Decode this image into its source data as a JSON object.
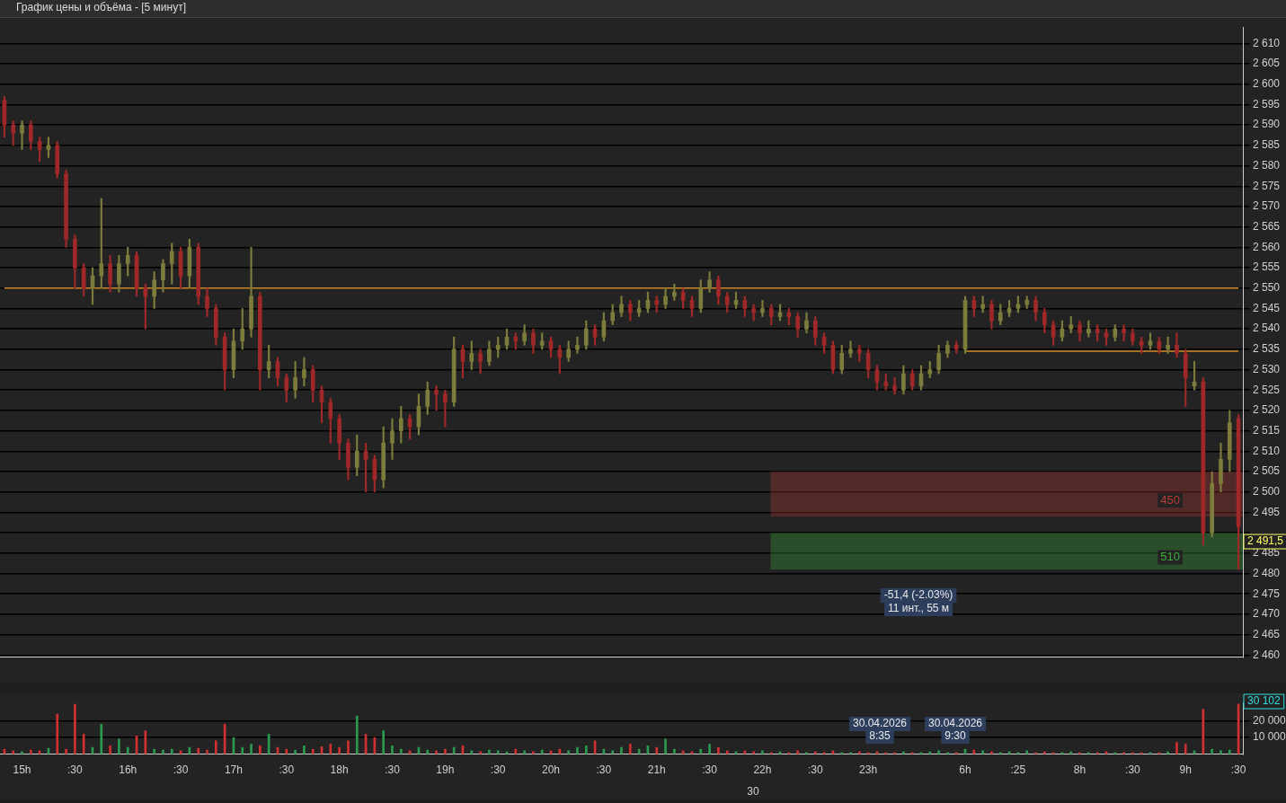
{
  "chart_data": [
    {
      "type": "candlestick",
      "title": "График цены и объёма - [5 минут]",
      "categories": [
        null,
        null,
        null,
        null,
        null,
        null,
        null,
        null,
        null,
        null,
        null,
        null,
        null,
        null,
        null,
        null,
        null,
        null,
        null,
        null,
        null,
        null,
        null,
        null,
        null,
        null,
        null,
        null,
        null,
        null,
        null,
        null,
        null,
        null,
        null,
        null,
        null,
        null,
        null,
        null,
        null,
        null,
        null,
        null,
        null,
        null,
        null,
        null,
        null,
        null,
        null,
        null,
        null,
        null,
        null,
        null,
        null,
        null,
        null,
        null,
        null,
        null,
        null,
        null,
        null,
        null,
        null,
        null,
        null,
        null,
        null,
        null,
        null,
        null,
        null,
        null,
        null,
        null,
        null,
        null,
        null,
        null,
        null,
        null,
        null,
        null,
        null,
        null,
        null,
        null,
        null,
        null,
        null,
        null,
        null,
        null,
        null,
        null,
        null,
        null,
        null,
        null,
        null,
        null,
        null,
        null,
        null,
        null,
        null,
        null,
        null,
        null,
        null,
        null,
        null,
        null,
        null,
        null,
        null,
        null,
        null,
        null,
        null,
        null,
        null,
        null,
        null,
        null,
        null,
        null,
        null,
        null,
        null,
        null,
        null,
        null,
        null,
        null,
        null,
        null,
        null
      ],
      "ohlc": [
        [
          2596,
          2597,
          2587,
          2590
        ],
        [
          2590,
          2591,
          2585,
          2588
        ],
        [
          2588,
          2591,
          2584,
          2590
        ],
        [
          2590,
          2591,
          2584,
          2586
        ],
        [
          2586,
          2587,
          2581,
          2584
        ],
        [
          2584,
          2587,
          2582,
          2585
        ],
        [
          2585,
          2586,
          2577,
          2578
        ],
        [
          2578,
          2579,
          2560,
          2562
        ],
        [
          2562,
          2563,
          2550,
          2555
        ],
        [
          2555,
          2556,
          2548,
          2550
        ],
        [
          2550,
          2555,
          2546,
          2553
        ],
        [
          2553,
          2572,
          2550,
          2556
        ],
        [
          2556,
          2558,
          2549,
          2551
        ],
        [
          2551,
          2558,
          2549,
          2556
        ],
        [
          2556,
          2560,
          2553,
          2558
        ],
        [
          2558,
          2559,
          2548,
          2550
        ],
        [
          2550,
          2551,
          2540,
          2548
        ],
        [
          2548,
          2554,
          2545,
          2552
        ],
        [
          2552,
          2557,
          2549,
          2556
        ],
        [
          2556,
          2561,
          2551,
          2559
        ],
        [
          2559,
          2560,
          2550,
          2553
        ],
        [
          2553,
          2562,
          2550,
          2560
        ],
        [
          2560,
          2561,
          2546,
          2548
        ],
        [
          2548,
          2550,
          2543,
          2545
        ],
        [
          2545,
          2546,
          2536,
          2538
        ],
        [
          2538,
          2539,
          2525,
          2530
        ],
        [
          2530,
          2540,
          2528,
          2537
        ],
        [
          2537,
          2545,
          2535,
          2540
        ],
        [
          2540,
          2560,
          2538,
          2548
        ],
        [
          2548,
          2549,
          2525,
          2530
        ],
        [
          2530,
          2536,
          2528,
          2532
        ],
        [
          2532,
          2533,
          2526,
          2528
        ],
        [
          2528,
          2529,
          2522,
          2525
        ],
        [
          2525,
          2532,
          2523,
          2528
        ],
        [
          2528,
          2533,
          2526,
          2530
        ],
        [
          2530,
          2531,
          2522,
          2525
        ],
        [
          2525,
          2526,
          2517,
          2522
        ],
        [
          2522,
          2523,
          2512,
          2518
        ],
        [
          2518,
          2519,
          2508,
          2512
        ],
        [
          2512,
          2513,
          2503,
          2506
        ],
        [
          2506,
          2514,
          2504,
          2510
        ],
        [
          2510,
          2512,
          2500,
          2508
        ],
        [
          2508,
          2509,
          2500,
          2503
        ],
        [
          2503,
          2516,
          2501,
          2512
        ],
        [
          2512,
          2518,
          2508,
          2515
        ],
        [
          2515,
          2521,
          2512,
          2518
        ],
        [
          2518,
          2519,
          2513,
          2516
        ],
        [
          2516,
          2524,
          2514,
          2521
        ],
        [
          2521,
          2527,
          2519,
          2525
        ],
        [
          2525,
          2526,
          2520,
          2524
        ],
        [
          2524,
          2525,
          2516,
          2522
        ],
        [
          2522,
          2538,
          2521,
          2535
        ],
        [
          2535,
          2536,
          2528,
          2532
        ],
        [
          2532,
          2537,
          2530,
          2534
        ],
        [
          2534,
          2535,
          2529,
          2532
        ],
        [
          2532,
          2537,
          2531,
          2535
        ],
        [
          2535,
          2538,
          2533,
          2536
        ],
        [
          2536,
          2540,
          2535,
          2538
        ],
        [
          2538,
          2539,
          2535,
          2537
        ],
        [
          2537,
          2541,
          2536,
          2539
        ],
        [
          2539,
          2540,
          2534,
          2536
        ],
        [
          2536,
          2539,
          2535,
          2537
        ],
        [
          2537,
          2538,
          2533,
          2535
        ],
        [
          2535,
          2536,
          2529,
          2533
        ],
        [
          2533,
          2537,
          2532,
          2535
        ],
        [
          2535,
          2538,
          2534,
          2536
        ],
        [
          2536,
          2542,
          2535,
          2540
        ],
        [
          2540,
          2541,
          2536,
          2538
        ],
        [
          2538,
          2544,
          2537,
          2542
        ],
        [
          2542,
          2546,
          2541,
          2544
        ],
        [
          2544,
          2548,
          2543,
          2546
        ],
        [
          2546,
          2547,
          2542,
          2544
        ],
        [
          2544,
          2547,
          2543,
          2545
        ],
        [
          2545,
          2549,
          2544,
          2547
        ],
        [
          2547,
          2548,
          2544,
          2546
        ],
        [
          2546,
          2550,
          2545,
          2548
        ],
        [
          2548,
          2551,
          2547,
          2549
        ],
        [
          2549,
          2550,
          2545,
          2547
        ],
        [
          2547,
          2548,
          2543,
          2545
        ],
        [
          2545,
          2552,
          2544,
          2550
        ],
        [
          2550,
          2554,
          2549,
          2552
        ],
        [
          2552,
          2553,
          2546,
          2548
        ],
        [
          2548,
          2549,
          2544,
          2546
        ],
        [
          2546,
          2549,
          2545,
          2547
        ],
        [
          2547,
          2548,
          2543,
          2545
        ],
        [
          2545,
          2546,
          2542,
          2544
        ],
        [
          2544,
          2547,
          2543,
          2545
        ],
        [
          2545,
          2546,
          2541,
          2543
        ],
        [
          2543,
          2546,
          2542,
          2544
        ],
        [
          2544,
          2545,
          2541,
          2543
        ],
        [
          2543,
          2544,
          2538,
          2540
        ],
        [
          2540,
          2544,
          2539,
          2542
        ],
        [
          2542,
          2543,
          2536,
          2538
        ],
        [
          2538,
          2539,
          2534,
          2536
        ],
        [
          2536,
          2537,
          2529,
          2530
        ],
        [
          2530,
          2536,
          2529,
          2534
        ],
        [
          2534,
          2537,
          2533,
          2535
        ],
        [
          2535,
          2536,
          2532,
          2534
        ],
        [
          2534,
          2535,
          2528,
          2530
        ],
        [
          2530,
          2531,
          2525,
          2527
        ],
        [
          2527,
          2529,
          2525,
          2526
        ],
        [
          2526,
          2528,
          2524,
          2525
        ],
        [
          2525,
          2531,
          2524,
          2529
        ],
        [
          2529,
          2530,
          2525,
          2526
        ],
        [
          2526,
          2531,
          2525,
          2529
        ],
        [
          2529,
          2532,
          2528,
          2530
        ],
        [
          2530,
          2536,
          2529,
          2534
        ],
        [
          2534,
          2537,
          2533,
          2536
        ],
        [
          2536,
          2537,
          2534,
          2535
        ],
        [
          2535,
          2548,
          2534,
          2547
        ],
        [
          2547,
          2548,
          2543,
          2545
        ],
        [
          2545,
          2548,
          2544,
          2546
        ],
        [
          2546,
          2547,
          2540,
          2542
        ],
        [
          2542,
          2546,
          2541,
          2544
        ],
        [
          2544,
          2547,
          2543,
          2545
        ],
        [
          2545,
          2548,
          2544,
          2546
        ],
        [
          2546,
          2548,
          2545,
          2547
        ],
        [
          2547,
          2548,
          2542,
          2544
        ],
        [
          2544,
          2545,
          2539,
          2541
        ],
        [
          2541,
          2542,
          2536,
          2538
        ],
        [
          2538,
          2542,
          2537,
          2540
        ],
        [
          2540,
          2543,
          2539,
          2541
        ],
        [
          2541,
          2542,
          2537,
          2539
        ],
        [
          2539,
          2542,
          2538,
          2540
        ],
        [
          2540,
          2541,
          2537,
          2539
        ],
        [
          2539,
          2540,
          2536,
          2538
        ],
        [
          2538,
          2541,
          2537,
          2540
        ],
        [
          2540,
          2541,
          2537,
          2539
        ],
        [
          2539,
          2540,
          2536,
          2537
        ],
        [
          2537,
          2538,
          2534,
          2536
        ],
        [
          2536,
          2539,
          2535,
          2537
        ],
        [
          2537,
          2538,
          2534,
          2535
        ],
        [
          2535,
          2538,
          2534,
          2536
        ],
        [
          2536,
          2539,
          2533,
          2534
        ],
        [
          2534,
          2535,
          2521,
          2528
        ],
        [
          2526,
          2532,
          2525,
          2527
        ],
        [
          2527,
          2528,
          2487,
          2490
        ],
        [
          2490,
          2505,
          2489,
          2502
        ],
        [
          2502,
          2512,
          2500,
          2508
        ],
        [
          2508,
          2520,
          2505,
          2517
        ],
        [
          2518,
          2519,
          2481,
          2491.5
        ]
      ],
      "colors": [
        "#a02828",
        "#a02828",
        "#7c7c3c",
        "#a02828",
        "#a02828",
        "#7c7c3c",
        "#a02828",
        "#a02828",
        "#a02828",
        "#a02828",
        "#7c7c3c",
        "#7c7c3c",
        "#a02828",
        "#7c7c3c",
        "#7c7c3c",
        "#a02828",
        "#a02828",
        "#7c7c3c",
        "#7c7c3c",
        "#7c7c3c",
        "#a02828",
        "#7c7c3c",
        "#a02828",
        "#a02828",
        "#a02828",
        "#a02828",
        "#7c7c3c",
        "#7c7c3c",
        "#7c7c3c",
        "#a02828",
        "#7c7c3c",
        "#a02828",
        "#a02828",
        "#7c7c3c",
        "#7c7c3c",
        "#a02828",
        "#a02828",
        "#a02828",
        "#a02828",
        "#a02828",
        "#7c7c3c",
        "#a02828",
        "#a02828",
        "#7c7c3c",
        "#7c7c3c",
        "#7c7c3c",
        "#a02828",
        "#7c7c3c",
        "#7c7c3c",
        "#a02828",
        "#a02828",
        "#7c7c3c",
        "#a02828",
        "#7c7c3c",
        "#a02828",
        "#7c7c3c",
        "#7c7c3c",
        "#7c7c3c",
        "#a02828",
        "#7c7c3c",
        "#a02828",
        "#7c7c3c",
        "#a02828",
        "#a02828",
        "#7c7c3c",
        "#7c7c3c",
        "#7c7c3c",
        "#a02828",
        "#7c7c3c",
        "#7c7c3c",
        "#7c7c3c",
        "#a02828",
        "#7c7c3c",
        "#7c7c3c",
        "#a02828",
        "#7c7c3c",
        "#7c7c3c",
        "#a02828",
        "#a02828",
        "#7c7c3c",
        "#7c7c3c",
        "#a02828",
        "#a02828",
        "#7c7c3c",
        "#a02828",
        "#a02828",
        "#7c7c3c",
        "#a02828",
        "#7c7c3c",
        "#a02828",
        "#a02828",
        "#7c7c3c",
        "#a02828",
        "#a02828",
        "#a02828",
        "#7c7c3c",
        "#7c7c3c",
        "#a02828",
        "#a02828",
        "#a02828",
        "#a02828",
        "#a02828",
        "#7c7c3c",
        "#a02828",
        "#7c7c3c",
        "#7c7c3c",
        "#7c7c3c",
        "#7c7c3c",
        "#a02828",
        "#7c7c3c",
        "#a02828",
        "#7c7c3c",
        "#a02828",
        "#7c7c3c",
        "#7c7c3c",
        "#7c7c3c",
        "#7c7c3c",
        "#a02828",
        "#a02828",
        "#a02828",
        "#7c7c3c",
        "#7c7c3c",
        "#a02828",
        "#7c7c3c",
        "#a02828",
        "#a02828",
        "#7c7c3c",
        "#a02828",
        "#a02828",
        "#a02828",
        "#7c7c3c",
        "#a02828",
        "#7c7c3c",
        "#a02828",
        "#a02828",
        "#7c7c3c",
        "#a02828",
        "#7c7c3c",
        "#7c7c3c",
        "#7c7c3c",
        "#a02828"
      ],
      "ylim": [
        2459.5,
        2614
      ],
      "yticks": [
        {
          "value": 2460,
          "label": "2 460"
        },
        {
          "value": 2465,
          "label": "2 465"
        },
        {
          "value": 2470,
          "label": "2 470"
        },
        {
          "value": 2475,
          "label": "2 475"
        },
        {
          "value": 2480,
          "label": "2 480"
        },
        {
          "value": 2485,
          "label": "2 485"
        },
        {
          "value": 2490,
          "label": null
        },
        {
          "value": 2495,
          "label": "2 495"
        },
        {
          "value": 2500,
          "label": "2 500"
        },
        {
          "value": 2505,
          "label": "2 505"
        },
        {
          "value": 2510,
          "label": "2 510"
        },
        {
          "value": 2515,
          "label": "2 515"
        },
        {
          "value": 2520,
          "label": "2 520"
        },
        {
          "value": 2525,
          "label": "2 525"
        },
        {
          "value": 2530,
          "label": "2 530"
        },
        {
          "value": 2535,
          "label": "2 535"
        },
        {
          "value": 2540,
          "label": "2 540"
        },
        {
          "value": 2545,
          "label": "2 545"
        },
        {
          "value": 2550,
          "label": "2 550"
        },
        {
          "value": 2555,
          "label": "2 555"
        },
        {
          "value": 2560,
          "label": "2 560"
        },
        {
          "value": 2565,
          "label": "2 565"
        },
        {
          "value": 2570,
          "label": "2 570"
        },
        {
          "value": 2575,
          "label": "2 575"
        },
        {
          "value": 2580,
          "label": "2 580"
        },
        {
          "value": 2585,
          "label": "2 585"
        },
        {
          "value": 2590,
          "label": "2 590"
        },
        {
          "value": 2595,
          "label": "2 595"
        },
        {
          "value": 2600,
          "label": "2 600"
        },
        {
          "value": 2605,
          "label": "2 605"
        },
        {
          "value": 2610,
          "label": "2 610"
        }
      ],
      "grid": "y",
      "series": [
        {
          "type": "line",
          "color": "#d08a2a",
          "values": [
            2550,
            2550,
            2550,
            2550,
            2550,
            2550,
            2550,
            2550,
            2550,
            2550,
            2550,
            2550,
            2550,
            2550,
            2550,
            2550,
            2550,
            2550,
            2550,
            2550,
            2550,
            2550,
            2550,
            2550,
            2550,
            2550,
            2550,
            2550,
            2550,
            2550,
            2550,
            2550,
            2550,
            2550,
            2550,
            2550,
            2550,
            2550,
            2550,
            2550,
            2550,
            2550,
            2550,
            2550,
            2550,
            2550,
            2550,
            2550,
            2550,
            2550,
            2550,
            2550,
            2550,
            2550,
            2550,
            2550,
            2550,
            2550,
            2550,
            2550,
            2550,
            2550,
            2550,
            2550,
            2550,
            2550,
            2550,
            2550,
            2550,
            2550,
            2550,
            2550,
            2550,
            2550,
            2550,
            2550,
            2550,
            2550,
            2550,
            2550,
            2550,
            2550,
            2550,
            2550,
            2550,
            2550,
            2550,
            2550,
            2550,
            2550,
            2550,
            2550,
            2550,
            2550,
            2550,
            2550,
            2550,
            2550,
            2550,
            2550,
            2550,
            2550,
            2550,
            2550,
            2550,
            2550,
            2550,
            2550,
            2550,
            2550,
            2550,
            2550,
            2550,
            2550,
            2550,
            2550,
            2550,
            2550,
            2550,
            2550,
            2550,
            2550,
            2550,
            2550,
            2550,
            2550,
            2550,
            2550,
            2550,
            2550,
            2550,
            2550,
            2550,
            2550,
            2550,
            2550,
            2550,
            2550,
            2550,
            2550,
            2550
          ]
        },
        {
          "type": "line",
          "color": "#d08a2a",
          "values": [
            null,
            null,
            null,
            null,
            null,
            null,
            null,
            null,
            null,
            null,
            null,
            null,
            null,
            null,
            null,
            null,
            null,
            null,
            null,
            null,
            null,
            null,
            null,
            null,
            null,
            null,
            null,
            null,
            null,
            null,
            null,
            null,
            null,
            null,
            null,
            null,
            null,
            null,
            null,
            null,
            null,
            null,
            null,
            null,
            null,
            null,
            null,
            null,
            null,
            null,
            null,
            null,
            null,
            null,
            null,
            null,
            null,
            null,
            null,
            null,
            null,
            null,
            null,
            null,
            null,
            null,
            null,
            null,
            null,
            null,
            null,
            null,
            null,
            null,
            null,
            null,
            null,
            null,
            null,
            null,
            null,
            null,
            null,
            null,
            null,
            null,
            null,
            null,
            null,
            null,
            null,
            null,
            null,
            null,
            null,
            null,
            null,
            null,
            null,
            null,
            null,
            null,
            null,
            null,
            null,
            null,
            null,
            null,
            null,
            2534.5,
            2534.5,
            2534.5,
            2534.5,
            2534.5,
            2534.5,
            2534.5,
            2534.5,
            2534.5,
            2534.5,
            2534.5,
            2534.5,
            2534.5,
            2534.5,
            2534.5,
            2534.5,
            2534.5,
            2534.5,
            2534.5,
            2534.5,
            2534.5,
            2534.5,
            2534.5,
            2534.5,
            2534.5,
            2534.5,
            2534.5,
            2534.5,
            2534.5,
            2534.5,
            2534.5,
            2534.5
          ]
        }
      ],
      "bands": [
        {
          "axis": "y",
          "from": 2494,
          "to": 2505,
          "label": "450",
          "color": "#c03a3a"
        },
        {
          "axis": "y",
          "from": 2481,
          "to": 2490,
          "label": "510",
          "color": "#3ab03a"
        }
      ],
      "annotations": [
        "-51,4 (-2.03%)",
        "11 инт., 55 м",
        "2 491,5"
      ]
    },
    {
      "type": "bar",
      "categories": [
        null,
        null,
        "15h",
        null,
        null,
        null,
        null,
        null,
        ":30",
        null,
        null,
        null,
        null,
        null,
        "16h",
        null,
        null,
        null,
        null,
        null,
        ":30",
        null,
        null,
        null,
        null,
        null,
        "17h",
        null,
        null,
        null,
        null,
        null,
        ":30",
        null,
        null,
        null,
        null,
        null,
        "18h",
        null,
        null,
        null,
        null,
        null,
        ":30",
        null,
        null,
        null,
        null,
        null,
        "19h",
        null,
        null,
        null,
        null,
        null,
        ":30",
        null,
        null,
        null,
        null,
        null,
        "20h",
        null,
        null,
        null,
        null,
        null,
        ":30",
        null,
        null,
        null,
        null,
        null,
        "21h",
        null,
        null,
        null,
        null,
        null,
        ":30",
        null,
        null,
        null,
        null,
        null,
        "22h",
        null,
        null,
        null,
        null,
        null,
        ":30",
        null,
        null,
        null,
        null,
        null,
        "23h",
        null,
        null,
        null,
        null,
        null,
        null,
        null,
        null,
        null,
        null,
        "6h",
        null,
        null,
        null,
        null,
        null,
        ":25",
        null,
        null,
        null,
        null,
        null,
        null,
        "8h",
        null,
        null,
        null,
        null,
        null,
        ":30",
        null,
        null,
        null,
        null,
        null,
        "9h",
        null,
        null,
        null,
        null,
        null,
        ":30"
      ],
      "values": [
        3000,
        2000,
        1500,
        2500,
        2000,
        3500,
        24000,
        3000,
        30000,
        12000,
        4000,
        18000,
        5000,
        9000,
        4000,
        11000,
        14000,
        3000,
        2500,
        3000,
        2000,
        4000,
        3500,
        2500,
        8000,
        18000,
        10000,
        4000,
        6000,
        5000,
        12000,
        4000,
        3000,
        2500,
        5000,
        3000,
        4500,
        6000,
        4000,
        8000,
        23000,
        12000,
        10000,
        14000,
        5000,
        3000,
        2000,
        4000,
        2500,
        2000,
        3000,
        4000,
        5000,
        2000,
        1500,
        2500,
        2000,
        1500,
        3000,
        2000,
        1500,
        2500,
        2000,
        3000,
        2000,
        4000,
        5000,
        8000,
        3000,
        2000,
        4000,
        6000,
        3000,
        5000,
        4000,
        9000,
        3000,
        2000,
        1500,
        3000,
        6000,
        4000,
        2000,
        1500,
        2000,
        1500,
        2000,
        1000,
        1500,
        1000,
        2000,
        1000,
        1500,
        1000,
        2000,
        1000,
        1000,
        1500,
        1000,
        1500,
        1000,
        1000,
        1500,
        1000,
        1000,
        1500,
        2000,
        1000,
        1000,
        3000,
        2500,
        2000,
        1500,
        1000,
        1500,
        1000,
        2000,
        1000,
        1500,
        1000,
        1000,
        1500,
        1000,
        1000,
        1000,
        1500,
        1000,
        1000,
        1000,
        1000,
        1000,
        1000,
        1500,
        7000,
        6000,
        2000,
        27000,
        3000,
        2000,
        2500,
        30102
      ],
      "colors": [
        "#d03030",
        "#d03030",
        "#2a9a50",
        "#d03030",
        "#d03030",
        "#2a9a50",
        "#d03030",
        "#d03030",
        "#d03030",
        "#d03030",
        "#2a9a50",
        "#2a9a50",
        "#d03030",
        "#2a9a50",
        "#2a9a50",
        "#d03030",
        "#d03030",
        "#2a9a50",
        "#2a9a50",
        "#2a9a50",
        "#d03030",
        "#2a9a50",
        "#d03030",
        "#d03030",
        "#d03030",
        "#d03030",
        "#2a9a50",
        "#2a9a50",
        "#2a9a50",
        "#d03030",
        "#2a9a50",
        "#d03030",
        "#d03030",
        "#2a9a50",
        "#2a9a50",
        "#d03030",
        "#d03030",
        "#d03030",
        "#d03030",
        "#d03030",
        "#2a9a50",
        "#d03030",
        "#d03030",
        "#2a9a50",
        "#2a9a50",
        "#2a9a50",
        "#d03030",
        "#2a9a50",
        "#2a9a50",
        "#d03030",
        "#d03030",
        "#2a9a50",
        "#d03030",
        "#2a9a50",
        "#d03030",
        "#2a9a50",
        "#2a9a50",
        "#2a9a50",
        "#d03030",
        "#2a9a50",
        "#d03030",
        "#2a9a50",
        "#d03030",
        "#d03030",
        "#2a9a50",
        "#2a9a50",
        "#2a9a50",
        "#d03030",
        "#2a9a50",
        "#2a9a50",
        "#2a9a50",
        "#d03030",
        "#2a9a50",
        "#2a9a50",
        "#d03030",
        "#2a9a50",
        "#2a9a50",
        "#d03030",
        "#d03030",
        "#2a9a50",
        "#2a9a50",
        "#d03030",
        "#d03030",
        "#2a9a50",
        "#d03030",
        "#d03030",
        "#2a9a50",
        "#d03030",
        "#2a9a50",
        "#d03030",
        "#d03030",
        "#2a9a50",
        "#d03030",
        "#d03030",
        "#d03030",
        "#2a9a50",
        "#2a9a50",
        "#d03030",
        "#d03030",
        "#d03030",
        "#d03030",
        "#d03030",
        "#2a9a50",
        "#d03030",
        "#2a9a50",
        "#2a9a50",
        "#2a9a50",
        "#2a9a50",
        "#d03030",
        "#2a9a50",
        "#d03030",
        "#2a9a50",
        "#d03030",
        "#2a9a50",
        "#2a9a50",
        "#2a9a50",
        "#2a9a50",
        "#d03030",
        "#d03030",
        "#d03030",
        "#2a9a50",
        "#2a9a50",
        "#d03030",
        "#2a9a50",
        "#d03030",
        "#d03030",
        "#2a9a50",
        "#d03030",
        "#d03030",
        "#d03030",
        "#2a9a50",
        "#d03030",
        "#2a9a50",
        "#d03030",
        "#d03030",
        "#2a9a50",
        "#d03030",
        "#2a9a50",
        "#2a9a50",
        "#2a9a50",
        "#d03030"
      ],
      "ylim": [
        0,
        31000
      ],
      "yticks": [
        {
          "value": 10000,
          "label": "10 000"
        },
        {
          "value": 20000,
          "label": "20 000"
        }
      ],
      "grid": "y",
      "annotations": [
        "30.04.2026",
        "8:35",
        "30.04.2026",
        "9:30",
        "30",
        "30 102"
      ]
    }
  ]
}
